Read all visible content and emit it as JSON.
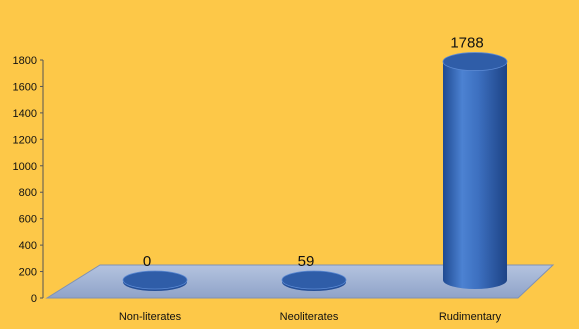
{
  "chart_data": {
    "type": "bar",
    "categories": [
      "Non-literates",
      "Neoliterates",
      "Rudimentary"
    ],
    "values": [
      0,
      59,
      1788
    ],
    "data_labels": [
      "0",
      "59",
      "1788"
    ],
    "yticks": [
      "0",
      "200",
      "400",
      "600",
      "800",
      "1000",
      "1200",
      "1400",
      "1600",
      "1800"
    ],
    "ylim": [
      0,
      1800
    ],
    "title": "",
    "xlabel": "",
    "ylabel": "",
    "style": "3d-cylinder",
    "grid": false,
    "legend": "none",
    "colors": {
      "background": "#fdc848",
      "floor": "#a7b8d8",
      "bar_body": "#3e6fbf",
      "bar_top": "#2f5da8"
    }
  }
}
